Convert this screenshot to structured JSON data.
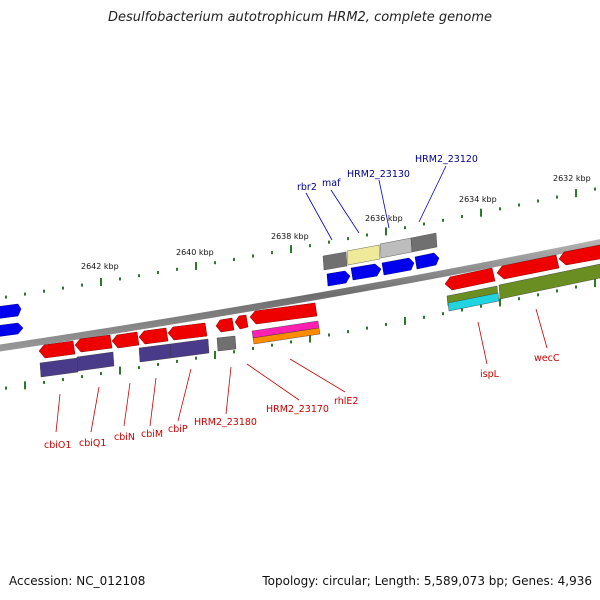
{
  "title": "Desulfobacterium autotrophicum HRM2, complete genome",
  "footer": {
    "accession": "Accession: NC_012108",
    "summary": "Topology: circular; Length: 5,589,073 bp; Genes: 4,936"
  },
  "scale_labels": [
    "2642 kbp",
    "2640 kbp",
    "2638 kbp",
    "2636 kbp",
    "2634 kbp",
    "2632 kbp"
  ],
  "forward_gene_labels": [
    "rbr2",
    "maf",
    "HRM2_23130",
    "HRM2_23120"
  ],
  "reverse_gene_labels": [
    "cbiO1",
    "cbiQ1",
    "cbiN",
    "cbiM",
    "cbiP",
    "HRM2_23180",
    "HRM2_23170",
    "rhlE2",
    "ispL",
    "wecC"
  ],
  "colors": {
    "backbone": "#7a7a7a",
    "tick": "#2a7a2a",
    "forward_cds": "#0000ee",
    "reverse_cds": "#ee0000",
    "forward_label": "#00008b",
    "reverse_label": "#cc0000",
    "cog_gray": "#707070",
    "cog_yellow": "#eeea9a",
    "cog_silver": "#bdbdbd",
    "cog_purple": "#4a3a8a",
    "cog_olive": "#6b8e23",
    "cog_cyan": "#22d3e0",
    "cog_magenta": "#ff1fb0",
    "cog_orange": "#ff8c00"
  }
}
